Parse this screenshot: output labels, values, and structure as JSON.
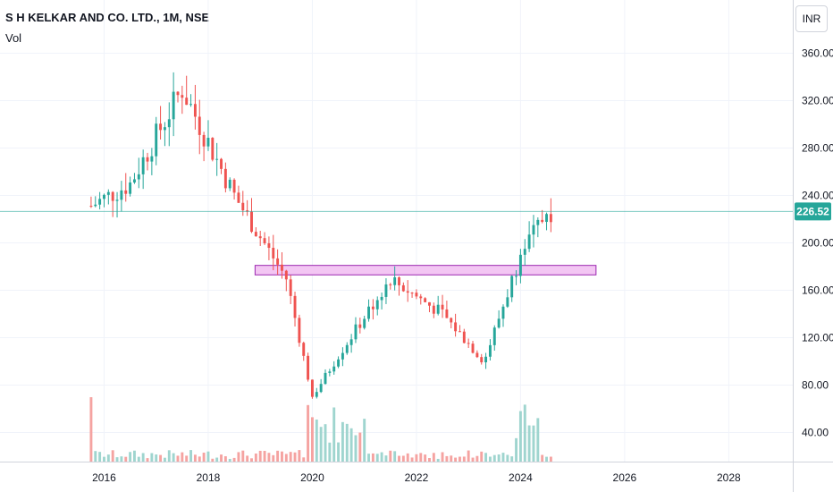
{
  "header": {
    "title": "S H KELKAR AND CO. LTD., 1M, NSE",
    "volume_label": "Vol",
    "currency_button": "INR"
  },
  "colors": {
    "up": "#26a69a",
    "down": "#ef5350",
    "up_vol": "#9fd5cf",
    "down_vol": "#f5a3a1",
    "zone_fill": "#f3c6f3",
    "zone_stroke": "#9c27b0",
    "last_price_line": "#26a69a"
  },
  "chart_data": {
    "type": "candlestick",
    "x_ticks": [
      "2016",
      "2018",
      "2020",
      "2022",
      "2024",
      "2026",
      "2028"
    ],
    "y_ticks": [
      "360.00",
      "320.00",
      "280.00",
      "240.00",
      "200.00",
      "160.00",
      "120.00",
      "80.00",
      "40.00"
    ],
    "x_range": [
      2014.0,
      2029.23
    ],
    "y_range": [
      20,
      380
    ],
    "last_price": 226.52,
    "last_price_label": "226.52",
    "zone": {
      "x_start": 2018.9,
      "x_end": 2025.45,
      "y_low": 173,
      "y_high": 181
    },
    "monthly": [
      {
        "t": 2015.5,
        "o": 215,
        "h": 245,
        "l": 205,
        "c": 225
      },
      {
        "t": 2016.5,
        "o": 235,
        "h": 268,
        "l": 215,
        "c": 250
      },
      {
        "t": 2017.5,
        "o": 320,
        "h": 360,
        "l": 275,
        "c": 330
      },
      {
        "t": 2018.5,
        "o": 305,
        "h": 315,
        "l": 230,
        "c": 240
      },
      {
        "t": 2019.5,
        "o": 210,
        "h": 215,
        "l": 160,
        "c": 170
      },
      {
        "t": 2020.0,
        "o": 115,
        "h": 125,
        "l": 55,
        "c": 70
      },
      {
        "t": 2020.5,
        "o": 70,
        "h": 110,
        "l": 60,
        "c": 105
      },
      {
        "t": 2021.5,
        "o": 165,
        "h": 198,
        "l": 140,
        "c": 170
      },
      {
        "t": 2022.5,
        "o": 150,
        "h": 160,
        "l": 130,
        "c": 140
      },
      {
        "t": 2023.3,
        "o": 110,
        "h": 120,
        "l": 85,
        "c": 100
      },
      {
        "t": 2024.0,
        "o": 170,
        "h": 200,
        "l": 160,
        "c": 190
      },
      {
        "t": 2024.5,
        "o": 200,
        "h": 235,
        "l": 175,
        "c": 226.52
      }
    ]
  }
}
